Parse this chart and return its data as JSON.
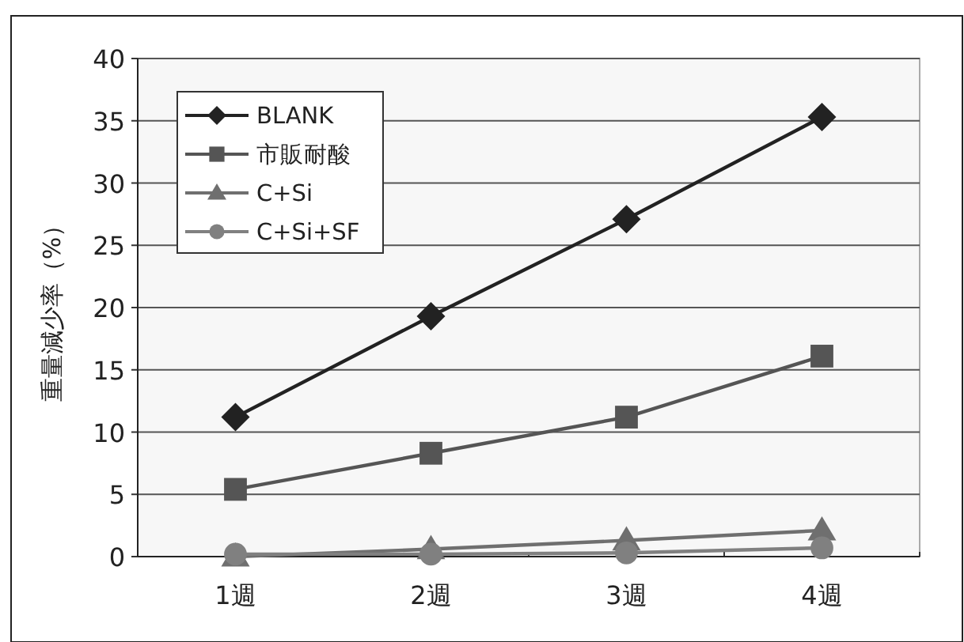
{
  "chart_data": {
    "type": "line",
    "ylabel": "重量減少率（%）",
    "categories": [
      "1週",
      "2週",
      "3週",
      "4週"
    ],
    "series": [
      {
        "name": "BLANK",
        "color": "#222222",
        "marker": "diamond",
        "values": [
          11.2,
          19.3,
          27.1,
          35.3
        ]
      },
      {
        "name": "市販耐酸",
        "color": "#555555",
        "marker": "square",
        "values": [
          5.4,
          8.3,
          11.2,
          16.1
        ]
      },
      {
        "name": "C+Si",
        "color": "#6f6f6f",
        "marker": "triangle",
        "values": [
          0.0,
          0.6,
          1.3,
          2.1
        ]
      },
      {
        "name": "C+Si+SF",
        "color": "#808080",
        "marker": "circle",
        "values": [
          0.2,
          0.2,
          0.3,
          0.7
        ]
      }
    ],
    "ylim": [
      0,
      40
    ],
    "yticks": [
      0,
      5,
      10,
      15,
      20,
      25,
      30,
      35,
      40
    ],
    "grid": "y",
    "legend": "top left",
    "line_style": "solid"
  }
}
